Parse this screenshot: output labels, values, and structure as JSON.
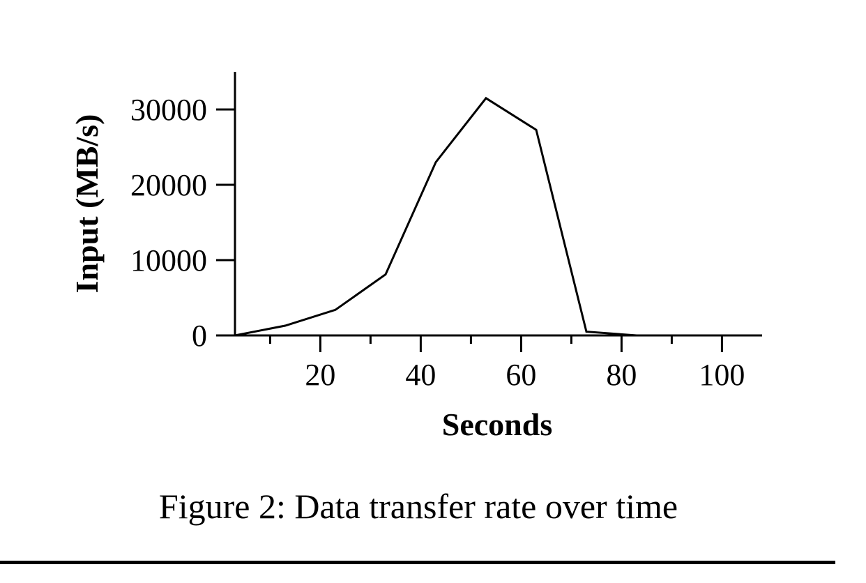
{
  "caption": "Figure 2: Data transfer rate over time",
  "chart_data": {
    "type": "line",
    "xlabel": "Seconds",
    "ylabel": "Input (MB/s)",
    "xlim": [
      3,
      108
    ],
    "ylim": [
      0,
      35000
    ],
    "x_ticks": [
      20,
      40,
      60,
      80,
      100
    ],
    "x_minor_ticks": [
      10,
      30,
      50,
      70,
      90
    ],
    "y_ticks": [
      0,
      10000,
      20000,
      30000
    ],
    "grid": false,
    "series": [
      {
        "x": [
          3,
          13,
          23,
          33,
          43,
          53,
          63,
          73,
          83,
          93,
          103,
          108
        ],
        "y": [
          0,
          1300,
          3400,
          8100,
          23000,
          31500,
          27300,
          500,
          0,
          0,
          0,
          0
        ]
      }
    ],
    "line_color": "#000000"
  }
}
